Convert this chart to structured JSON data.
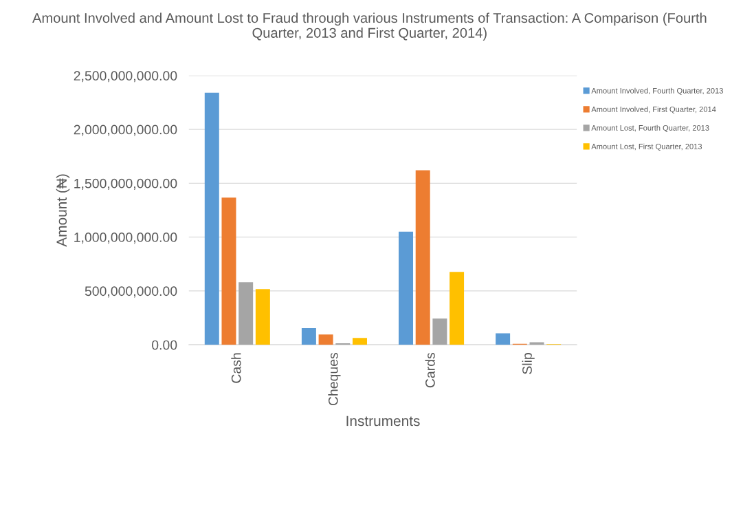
{
  "chart_data": {
    "type": "bar",
    "title": "Amount Involved and Amount Lost to Fraud through various Instruments of Transaction: A Comparison (Fourth Quarter, 2013 and First Quarter, 2014)",
    "xlabel": "Instruments",
    "ylabel": "Amount (₦)",
    "categories": [
      "Cash",
      "Cheques",
      "Cards",
      "Slip"
    ],
    "series": [
      {
        "name": "Amount Involved, Fourth Quarter, 2013",
        "color": "#5b9bd5",
        "values": [
          2340000000,
          155000000,
          1050000000,
          106000000
        ]
      },
      {
        "name": "Amount Involved, First Quarter, 2014",
        "color": "#ed7d31",
        "values": [
          1366000000,
          96000000,
          1621000000,
          9000000
        ]
      },
      {
        "name": "Amount Lost, Fourth Quarter, 2013",
        "color": "#a5a5a5",
        "values": [
          581000000,
          13000000,
          243000000,
          23000000
        ]
      },
      {
        "name": "Amount Lost, First Quarter, 2013",
        "color": "#ffc000",
        "values": [
          517000000,
          64000000,
          677000000,
          6000000
        ]
      }
    ],
    "ylim": [
      0,
      2500000000
    ],
    "yticks": [
      {
        "value": 0,
        "label": "0.00"
      },
      {
        "value": 500000000,
        "label": "500,000,000.00"
      },
      {
        "value": 1000000000,
        "label": "1,000,000,000.00"
      },
      {
        "value": 1500000000,
        "label": "1,500,000,000.00"
      },
      {
        "value": 2000000000,
        "label": "2,000,000,000.00"
      },
      {
        "value": 2500000000,
        "label": "2,500,000,000.00"
      }
    ],
    "grid": "y",
    "legend": "right"
  }
}
